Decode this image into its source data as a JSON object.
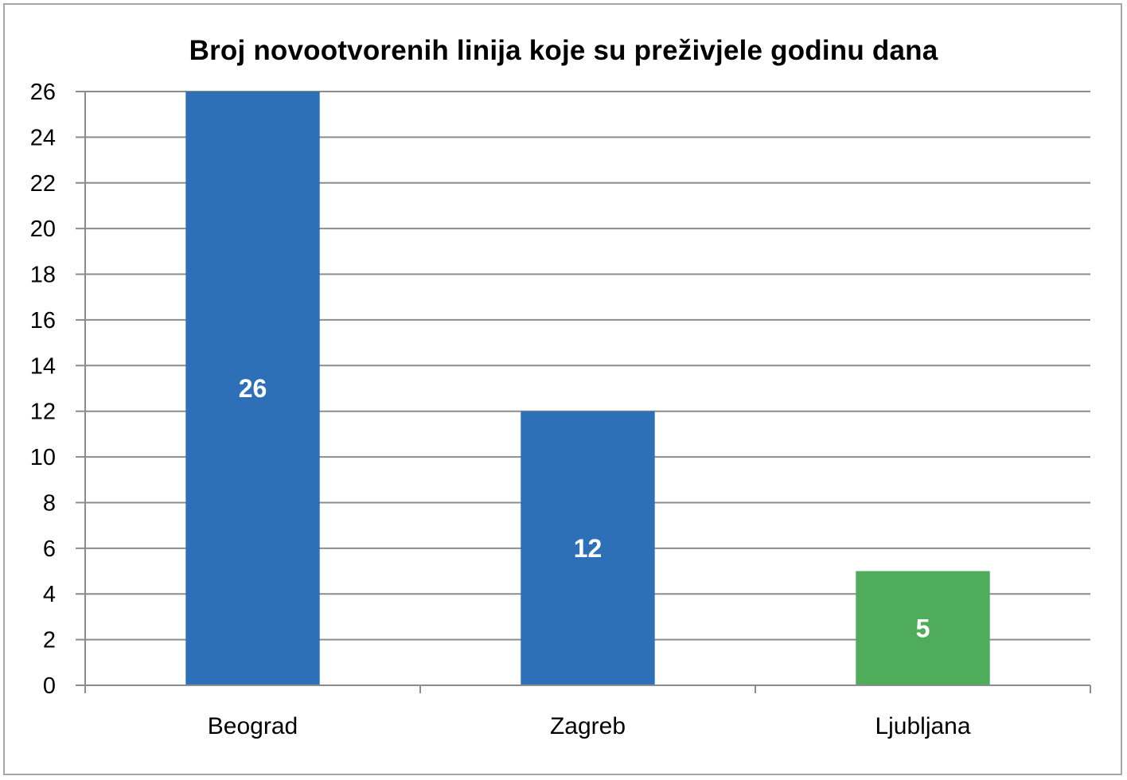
{
  "chart_data": {
    "type": "bar",
    "title": "Broj novootvorenih  linija koje su preživjele godinu dana",
    "categories": [
      "Beograd",
      "Zagreb",
      "Ljubljana"
    ],
    "values": [
      26,
      12,
      5
    ],
    "bar_colors": [
      "#2e70b8",
      "#2e70b8",
      "#4fac5b"
    ],
    "data_labels": [
      "26",
      "12",
      "5"
    ],
    "xlabel": "",
    "ylabel": "",
    "ylim": [
      0,
      26
    ],
    "yticks": [
      0,
      2,
      4,
      6,
      8,
      10,
      12,
      14,
      16,
      18,
      20,
      22,
      24,
      26
    ],
    "grid": true,
    "legend": "none",
    "colors": {
      "grid": "#8c8c8c",
      "axis": "#8c8c8c",
      "border": "#a6a6a6"
    }
  }
}
